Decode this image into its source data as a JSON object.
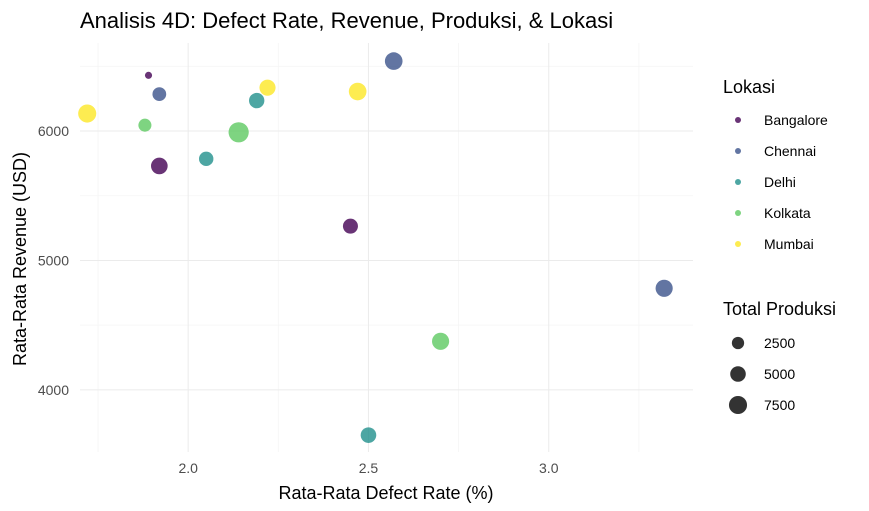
{
  "chart_data": {
    "type": "scatter",
    "title": "Analisis 4D: Defect Rate, Revenue, Produksi, & Lokasi",
    "xlabel": "Rata-Rata Defect Rate (%)",
    "ylabel": "Rata-Rata Revenue (USD)",
    "xlim": [
      1.7,
      3.4
    ],
    "ylim": [
      3520,
      6680
    ],
    "x_ticks": [
      2.0,
      2.5,
      3.0
    ],
    "x_tick_labels": [
      "2.0",
      "2.5",
      "3.0"
    ],
    "y_ticks": [
      4000,
      5000,
      6000
    ],
    "y_tick_labels": [
      "4000",
      "5000",
      "6000"
    ],
    "grid": true,
    "legend_position": "right",
    "color_legend": {
      "title": "Lokasi",
      "entries": [
        {
          "name": "Bangalore",
          "color": "#440154"
        },
        {
          "name": "Chennai",
          "color": "#3b528b"
        },
        {
          "name": "Delhi",
          "color": "#21908c"
        },
        {
          "name": "Kolkata",
          "color": "#5ec962"
        },
        {
          "name": "Mumbai",
          "color": "#fde725"
        }
      ]
    },
    "size_legend": {
      "title": "Total Produksi",
      "entries": [
        {
          "label": "2500",
          "value": 2500
        },
        {
          "label": "5000",
          "value": 5000
        },
        {
          "label": "7500",
          "value": 7500
        }
      ]
    },
    "series": [
      {
        "name": "Bangalore",
        "points": [
          {
            "x": 1.89,
            "y": 6430,
            "size": 300
          },
          {
            "x": 1.92,
            "y": 5730,
            "size": 6000
          },
          {
            "x": 2.45,
            "y": 5265,
            "size": 4500
          }
        ]
      },
      {
        "name": "Chennai",
        "points": [
          {
            "x": 1.92,
            "y": 6285,
            "size": 3500
          },
          {
            "x": 2.57,
            "y": 6540,
            "size": 7000
          },
          {
            "x": 3.32,
            "y": 4785,
            "size": 6500
          }
        ]
      },
      {
        "name": "Delhi",
        "points": [
          {
            "x": 2.05,
            "y": 5785,
            "size": 4000
          },
          {
            "x": 2.19,
            "y": 6235,
            "size": 4800
          },
          {
            "x": 2.5,
            "y": 3650,
            "size": 5000
          }
        ]
      },
      {
        "name": "Kolkata",
        "points": [
          {
            "x": 1.88,
            "y": 6045,
            "size": 3000
          },
          {
            "x": 2.14,
            "y": 5990,
            "size": 10000
          },
          {
            "x": 2.7,
            "y": 4375,
            "size": 6500
          }
        ]
      },
      {
        "name": "Mumbai",
        "points": [
          {
            "x": 1.72,
            "y": 6135,
            "size": 7500
          },
          {
            "x": 2.22,
            "y": 6335,
            "size": 5500
          },
          {
            "x": 2.47,
            "y": 6305,
            "size": 7000
          }
        ]
      }
    ]
  }
}
